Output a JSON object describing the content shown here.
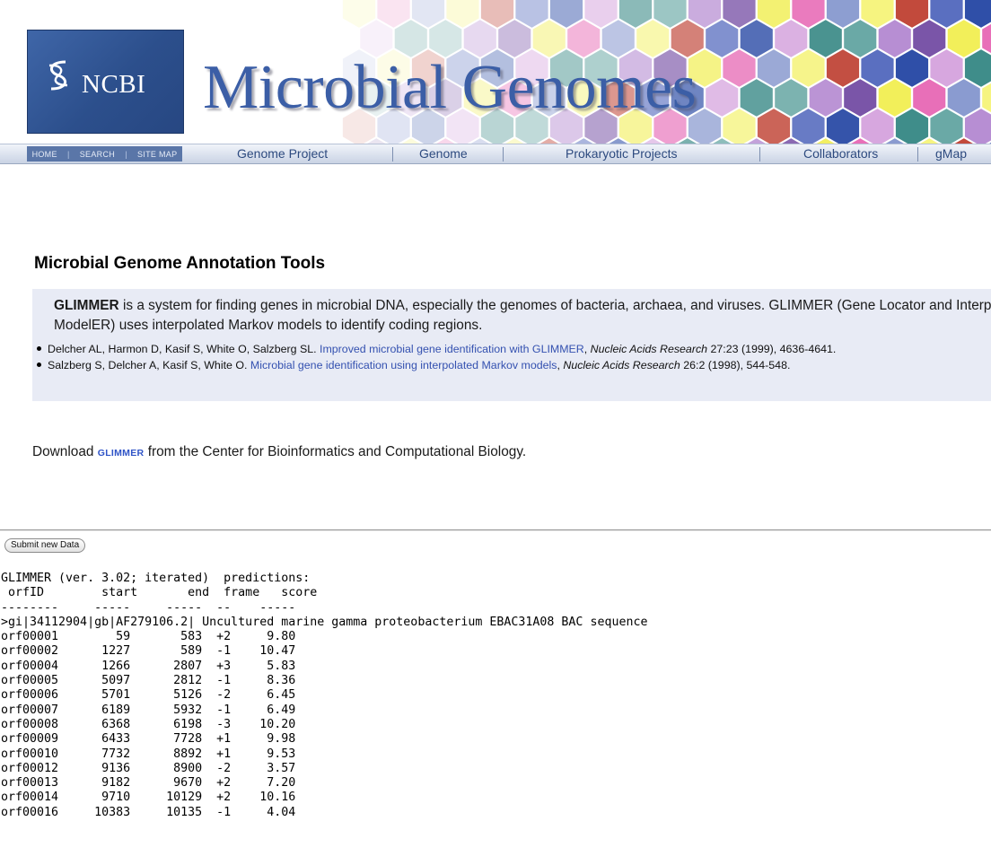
{
  "banner": {
    "logo_text": "NCBI",
    "title": "Microbial Genomes",
    "colors": {
      "logo_bg": "#2f5393",
      "title": "#3b5ea6"
    }
  },
  "utility_links": [
    "HOME",
    "SEARCH",
    "SITE MAP"
  ],
  "nav": [
    "Genome Project",
    "Genome",
    "Prokaryotic Projects",
    "Collaborators",
    "gMap"
  ],
  "section_title": "Microbial Genome Annotation Tools",
  "description": {
    "name": "GLIMMER",
    "line1_rest": " is a system for finding genes in microbial DNA, especially the genomes of bacteria, archaea, and viruses. GLIMMER (Gene Locator and Interpolated Markov",
    "line2": "ModelER) uses interpolated Markov models to identify coding regions."
  },
  "references": [
    {
      "authors": "Delcher AL, Harmon D, Kasif S, White O, Salzberg SL. ",
      "link": "Improved microbial gene identification with GLIMMER",
      "journal": "Nucleic Acids Research",
      "details": " 27:23 (1999), 4636-4641."
    },
    {
      "authors": "Salzberg S, Delcher A, Kasif S, White O. ",
      "link": "Microbial gene identification using interpolated Markov models",
      "journal": "Nucleic Acids Research",
      "details": " 26:2 (1998), 544-548."
    }
  ],
  "download": {
    "prefix": "Download ",
    "link": "GLIMMER",
    "suffix": " from the Center for Bioinformatics and Computational Biology."
  },
  "submit_button": "Submit new Data",
  "results": {
    "header": "GLIMMER (ver. 3.02; iterated)  predictions:",
    "columns": [
      "orfID",
      "start",
      "end",
      "frame",
      "score"
    ],
    "sequence_line": ">gi|34112904|gb|AF279106.2| Uncultured marine gamma proteobacterium EBAC31A08 BAC sequence",
    "rows": [
      [
        "orf00001",
        "59",
        "583",
        "+2",
        "9.80"
      ],
      [
        "orf00002",
        "1227",
        "589",
        "-1",
        "10.47"
      ],
      [
        "orf00004",
        "1266",
        "2807",
        "+3",
        "5.83"
      ],
      [
        "orf00005",
        "5097",
        "2812",
        "-1",
        "8.36"
      ],
      [
        "orf00006",
        "5701",
        "5126",
        "-2",
        "6.45"
      ],
      [
        "orf00007",
        "6189",
        "5932",
        "-1",
        "6.49"
      ],
      [
        "orf00008",
        "6368",
        "6198",
        "-3",
        "10.20"
      ],
      [
        "orf00009",
        "6433",
        "7728",
        "+1",
        "9.98"
      ],
      [
        "orf00010",
        "7732",
        "8892",
        "+1",
        "9.53"
      ],
      [
        "orf00012",
        "9136",
        "8900",
        "-2",
        "3.57"
      ],
      [
        "orf00013",
        "9182",
        "9670",
        "+2",
        "7.20"
      ],
      [
        "orf00014",
        "9710",
        "10129",
        "+2",
        "10.16"
      ],
      [
        "orf00016",
        "10383",
        "10135",
        "-1",
        "4.04"
      ]
    ]
  }
}
